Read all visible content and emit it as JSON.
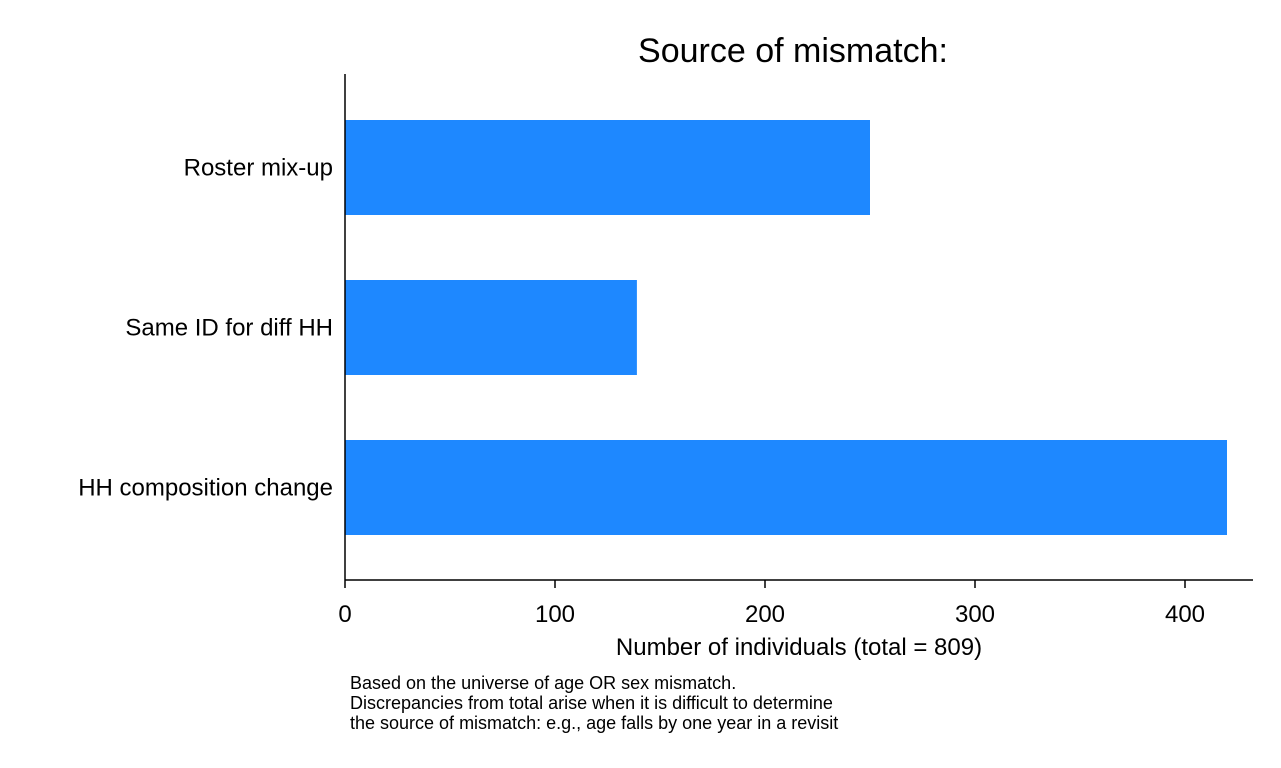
{
  "chart_data": {
    "type": "bar",
    "orientation": "horizontal",
    "title": "Source of mismatch:",
    "categories": [
      "Roster mix-up",
      "Same ID for diff HH",
      "HH composition change"
    ],
    "values": [
      250,
      139,
      420
    ],
    "xlabel": "Number of individuals (total = 809)",
    "ylabel": "",
    "xlim": [
      0,
      430
    ],
    "xticks": [
      0,
      100,
      200,
      300,
      400
    ],
    "grid": false,
    "bar_color": "#1e88ff",
    "notes": [
      "Based on the universe of age OR sex mismatch.",
      "Discrepancies from total arise when it is difficult to determine",
      "the source of mismatch: e.g., age falls by one year in a revisit"
    ]
  }
}
